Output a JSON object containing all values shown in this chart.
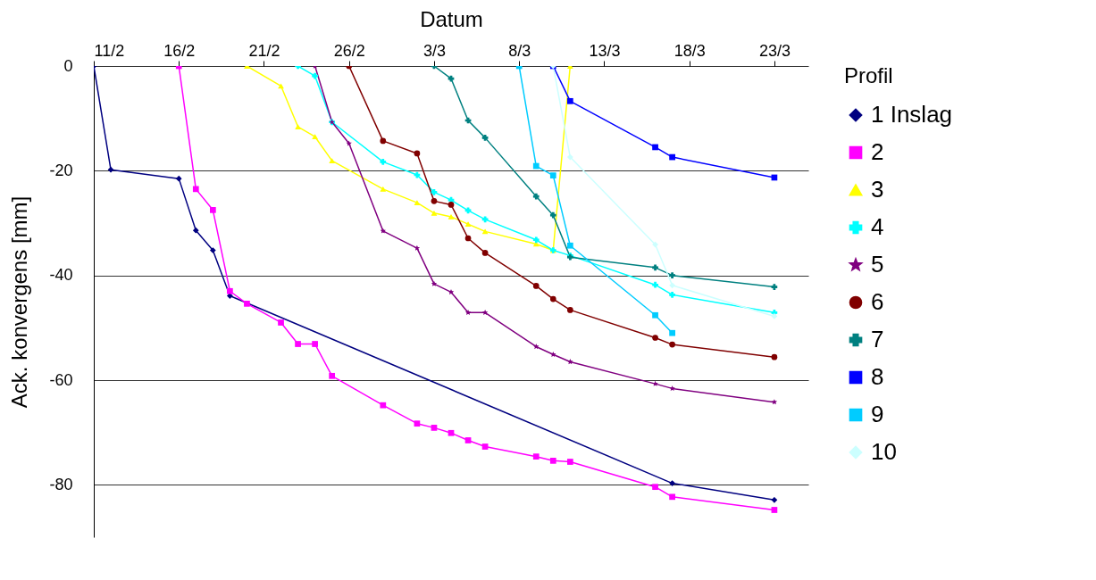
{
  "chart_data": {
    "type": "line",
    "xlabel": "Datum",
    "ylabel": "Ack. konvergens [mm]",
    "legend_title": "Profil",
    "legend": "right",
    "grid": "y",
    "xlim": [
      "--02-11",
      "--03-25"
    ],
    "xticks": [
      {
        "value": "--02-11",
        "label": "11/2"
      },
      {
        "value": "--02-16",
        "label": "16/2"
      },
      {
        "value": "--02-21",
        "label": "21/2"
      },
      {
        "value": "--02-26",
        "label": "26/2"
      },
      {
        "value": "--03-03",
        "label": "3/3"
      },
      {
        "value": "--03-08",
        "label": "8/3"
      },
      {
        "value": "--03-13",
        "label": "13/3"
      },
      {
        "value": "--03-18",
        "label": "18/3"
      },
      {
        "value": "--03-23",
        "label": "23/3"
      }
    ],
    "ylim": [
      -90,
      0
    ],
    "yticks": [
      -80,
      -60,
      -40,
      -20,
      0
    ],
    "series": [
      {
        "name": "1   Inslag",
        "color": "#000080",
        "marker": "diamond",
        "x": [
          "--02-11",
          "--02-12",
          "--02-16",
          "--02-17",
          "--02-18",
          "--02-19",
          "--03-17",
          "--03-23"
        ],
        "values": [
          0,
          -19.8,
          -21.5,
          -31.4,
          -35.2,
          -43.9,
          -79.7,
          -82.9
        ]
      },
      {
        "name": "2",
        "color": "#ff00ff",
        "marker": "square",
        "x": [
          "--02-16",
          "--02-17",
          "--02-18",
          "--02-19",
          "--02-20",
          "--02-22",
          "--02-23",
          "--02-24",
          "--02-25",
          "--02-28",
          "--03-02",
          "--03-03",
          "--03-04",
          "--03-05",
          "--03-06",
          "--03-09",
          "--03-10",
          "--03-11",
          "--03-16",
          "--03-17",
          "--03-23"
        ],
        "values": [
          0,
          -23.5,
          -27.5,
          -43.0,
          -45.4,
          -49.0,
          -53.1,
          -53.1,
          -59.2,
          -64.8,
          -68.3,
          -69.1,
          -70.1,
          -71.5,
          -72.7,
          -74.6,
          -75.4,
          -75.6,
          -80.4,
          -82.3,
          -84.8
        ]
      },
      {
        "name": "3",
        "color": "#ffff00",
        "marker": "triangle",
        "x": [
          "--02-20",
          "--02-22",
          "--02-23",
          "--02-24",
          "--02-25",
          "--02-28",
          "--03-02",
          "--03-03",
          "--03-04",
          "--03-05",
          "--03-06",
          "--03-09",
          "--03-10",
          "--03-11"
        ],
        "values": [
          0,
          -3.8,
          -11.6,
          -13.5,
          -18.1,
          -23.5,
          -26.1,
          -28.1,
          -28.8,
          -30.2,
          -31.6,
          -34.0,
          -35.2,
          0
        ]
      },
      {
        "name": "4",
        "color": "#00ffff",
        "marker": "cross",
        "x": [
          "--02-23",
          "--02-24",
          "--02-25",
          "--02-28",
          "--03-02",
          "--03-03",
          "--03-04",
          "--03-05",
          "--03-06",
          "--03-09",
          "--03-10",
          "--03-11",
          "--03-16",
          "--03-17",
          "--03-23"
        ],
        "values": [
          0,
          -1.9,
          -10.7,
          -18.3,
          -20.8,
          -24.1,
          -25.6,
          -27.6,
          -29.3,
          -33.2,
          -35.2,
          -36.2,
          -41.8,
          -43.7,
          -47.1
        ]
      },
      {
        "name": "5",
        "color": "#800080",
        "marker": "star",
        "x": [
          "--02-24",
          "--02-25",
          "--02-26",
          "--02-28",
          "--03-02",
          "--03-03",
          "--03-04",
          "--03-05",
          "--03-06",
          "--03-09",
          "--03-10",
          "--03-11",
          "--03-16",
          "--03-17",
          "--03-23"
        ],
        "values": [
          0,
          -10.7,
          -14.8,
          -31.5,
          -34.8,
          -41.6,
          -43.2,
          -47.1,
          -47.1,
          -53.6,
          -55.1,
          -56.5,
          -60.7,
          -61.6,
          -64.2
        ]
      },
      {
        "name": "6",
        "color": "#800000",
        "marker": "circle",
        "x": [
          "--02-26",
          "--02-28",
          "--03-02",
          "--03-03",
          "--03-04",
          "--03-05",
          "--03-06",
          "--03-09",
          "--03-10",
          "--03-11",
          "--03-16",
          "--03-17",
          "--03-23"
        ],
        "values": [
          0,
          -14.3,
          -16.7,
          -25.8,
          -26.5,
          -32.9,
          -35.7,
          -42.0,
          -44.5,
          -46.6,
          -51.9,
          -53.2,
          -55.6
        ]
      },
      {
        "name": "7",
        "color": "#008080",
        "marker": "cross",
        "x": [
          "--03-03",
          "--03-04",
          "--03-05",
          "--03-06",
          "--03-09",
          "--03-10",
          "--03-11",
          "--03-16",
          "--03-17",
          "--03-23"
        ],
        "values": [
          0,
          -2.4,
          -10.4,
          -13.7,
          -24.9,
          -28.5,
          -36.5,
          -38.5,
          -40.0,
          -42.2
        ]
      },
      {
        "name": "8",
        "color": "#0000ff",
        "marker": "square",
        "x": [
          "--03-10",
          "--03-11",
          "--03-16",
          "--03-17",
          "--03-23"
        ],
        "values": [
          0,
          -6.7,
          -15.5,
          -17.4,
          -21.3
        ]
      },
      {
        "name": "9",
        "color": "#00ccff",
        "marker": "square",
        "x": [
          "--03-08",
          "--03-09",
          "--03-10",
          "--03-11",
          "--03-16",
          "--03-17"
        ],
        "values": [
          0,
          -19.1,
          -20.9,
          -34.3,
          -47.6,
          -51.0
        ]
      },
      {
        "name": "10",
        "color": "#ccffff",
        "marker": "diamond",
        "x": [
          "--03-10",
          "--03-11",
          "--03-16",
          "--03-17",
          "--03-23"
        ],
        "values": [
          0,
          -17.4,
          -34.1,
          -41.9,
          -47.8
        ]
      }
    ]
  }
}
